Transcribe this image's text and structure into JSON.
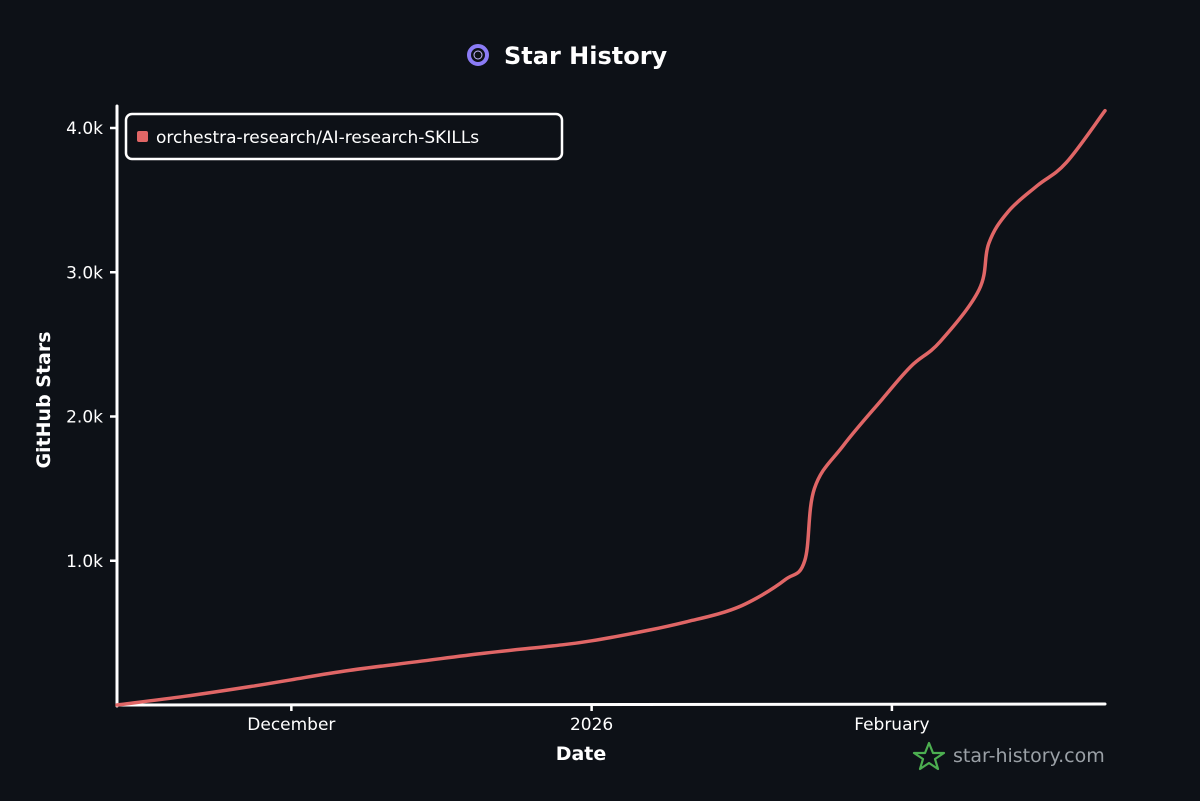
{
  "colors": {
    "background": "#0d1117",
    "axis": "#ffffff",
    "series": "#e06666",
    "title_icon_ring": "#8b7cf6",
    "watermark_icon": "#4caf50",
    "watermark_text": "#9aa0a6"
  },
  "watermark": {
    "text": "star-history.com",
    "icon": "star-icon"
  },
  "chart_data": {
    "type": "line",
    "title": "Star History",
    "title_icon": "ring-icon",
    "xlabel": "Date",
    "ylabel": "GitHub Stars",
    "x_ticks": [
      {
        "label": "December",
        "date": "2025-12-01"
      },
      {
        "label": "2026",
        "date": "2026-01-01"
      },
      {
        "label": "February",
        "date": "2026-02-01"
      }
    ],
    "y_ticks": [
      {
        "label": "1.0k",
        "value": 1000
      },
      {
        "label": "2.0k",
        "value": 2000
      },
      {
        "label": "3.0k",
        "value": 3000
      },
      {
        "label": "4.0k",
        "value": 4000
      }
    ],
    "xlim": [
      "2025-11-13",
      "2026-02-23"
    ],
    "ylim": [
      0,
      4000
    ],
    "grid": false,
    "legend_position": "top-left",
    "series": [
      {
        "name": "orchestra-research/AI-research-SKILLs",
        "points": [
          {
            "x": "2025-11-13",
            "y": 0
          },
          {
            "x": "2025-11-20",
            "y": 60
          },
          {
            "x": "2025-11-27",
            "y": 130
          },
          {
            "x": "2025-12-01",
            "y": 175
          },
          {
            "x": "2025-12-07",
            "y": 240
          },
          {
            "x": "2025-12-14",
            "y": 300
          },
          {
            "x": "2025-12-21",
            "y": 360
          },
          {
            "x": "2025-12-28",
            "y": 410
          },
          {
            "x": "2026-01-01",
            "y": 445
          },
          {
            "x": "2026-01-07",
            "y": 520
          },
          {
            "x": "2026-01-11",
            "y": 580
          },
          {
            "x": "2026-01-15",
            "y": 650
          },
          {
            "x": "2026-01-18",
            "y": 740
          },
          {
            "x": "2026-01-21",
            "y": 870
          },
          {
            "x": "2026-01-23",
            "y": 1000
          },
          {
            "x": "2026-01-24",
            "y": 1500
          },
          {
            "x": "2026-01-27",
            "y": 1800
          },
          {
            "x": "2026-01-31",
            "y": 2120
          },
          {
            "x": "2026-02-03",
            "y": 2350
          },
          {
            "x": "2026-02-06",
            "y": 2520
          },
          {
            "x": "2026-02-10",
            "y": 2880
          },
          {
            "x": "2026-02-11",
            "y": 3200
          },
          {
            "x": "2026-02-13",
            "y": 3420
          },
          {
            "x": "2026-02-16",
            "y": 3600
          },
          {
            "x": "2026-02-19",
            "y": 3760
          },
          {
            "x": "2026-02-23",
            "y": 4120
          }
        ]
      }
    ]
  }
}
